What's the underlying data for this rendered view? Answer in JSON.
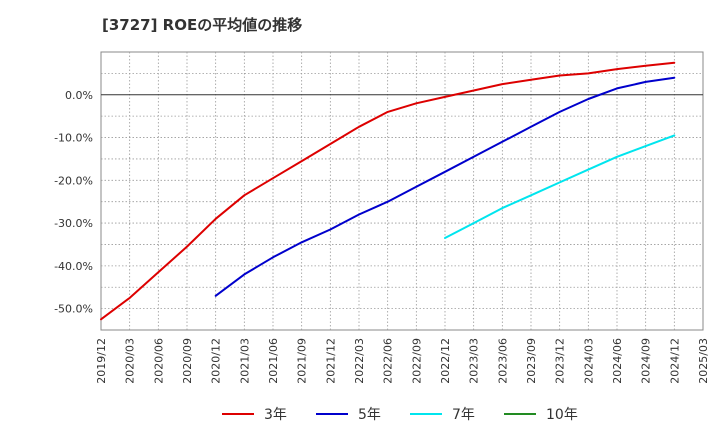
{
  "chart_data": {
    "type": "line",
    "title": "[3727]  ROEの平均値の推移",
    "xlabel": "",
    "ylabel": "",
    "ylim": [
      -55,
      10
    ],
    "grid": true,
    "legend_position": "bottom",
    "y_ticks": [
      0,
      -10,
      -20,
      -30,
      -40,
      -50
    ],
    "y_tick_labels": [
      "0.0%",
      "-10.0%",
      "-20.0%",
      "-30.0%",
      "-40.0%",
      "-50.0%"
    ],
    "x_tick_labels": [
      "2019/12",
      "2020/03",
      "2020/06",
      "2020/09",
      "2020/12",
      "2021/03",
      "2021/06",
      "2021/09",
      "2021/12",
      "2022/03",
      "2022/06",
      "2022/09",
      "2022/12",
      "2023/03",
      "2023/06",
      "2023/09",
      "2023/12",
      "2024/03",
      "2024/06",
      "2024/09",
      "2024/12",
      "2025/03"
    ],
    "series": [
      {
        "name": "3年",
        "color": "#dd0000",
        "points": [
          [
            0,
            -52.5
          ],
          [
            1,
            -47.5
          ],
          [
            2,
            -41.5
          ],
          [
            3,
            -35.5
          ],
          [
            4,
            -29.0
          ],
          [
            5,
            -23.5
          ],
          [
            6,
            -19.5
          ],
          [
            7,
            -15.5
          ],
          [
            8,
            -11.5
          ],
          [
            9,
            -7.5
          ],
          [
            10,
            -4.0
          ],
          [
            11,
            -2.0
          ],
          [
            12,
            -0.5
          ],
          [
            13,
            1.0
          ],
          [
            14,
            2.5
          ],
          [
            15,
            3.5
          ],
          [
            16,
            4.5
          ],
          [
            17,
            5.0
          ],
          [
            18,
            6.0
          ],
          [
            19,
            6.8
          ],
          [
            20,
            7.5
          ]
        ]
      },
      {
        "name": "5年",
        "color": "#0000cc",
        "points": [
          [
            4,
            -47.0
          ],
          [
            5,
            -42.0
          ],
          [
            6,
            -38.0
          ],
          [
            7,
            -34.5
          ],
          [
            8,
            -31.5
          ],
          [
            9,
            -28.0
          ],
          [
            10,
            -25.0
          ],
          [
            11,
            -21.5
          ],
          [
            12,
            -18.0
          ],
          [
            13,
            -14.5
          ],
          [
            14,
            -11.0
          ],
          [
            15,
            -7.5
          ],
          [
            16,
            -4.0
          ],
          [
            17,
            -1.0
          ],
          [
            18,
            1.5
          ],
          [
            19,
            3.0
          ],
          [
            20,
            4.0
          ]
        ]
      },
      {
        "name": "7年",
        "color": "#00e5ee",
        "points": [
          [
            12,
            -33.5
          ],
          [
            13,
            -30.0
          ],
          [
            14,
            -26.5
          ],
          [
            15,
            -23.5
          ],
          [
            16,
            -20.5
          ],
          [
            17,
            -17.5
          ],
          [
            18,
            -14.5
          ],
          [
            19,
            -12.0
          ],
          [
            20,
            -9.5
          ]
        ]
      },
      {
        "name": "10年",
        "color": "#228b22",
        "points": []
      }
    ]
  }
}
